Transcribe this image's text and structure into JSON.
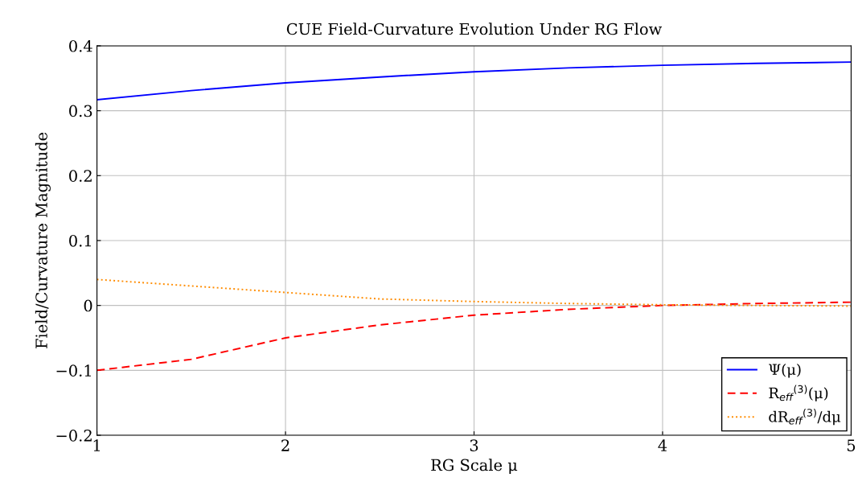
{
  "chart_data": {
    "type": "line",
    "title": "CUE Field-Curvature Evolution Under RG Flow",
    "xlabel": "RG Scale μ",
    "ylabel": "Field/Curvature Magnitude",
    "x": [
      1,
      1.5,
      2,
      2.5,
      3,
      3.5,
      4,
      4.5,
      5
    ],
    "series": [
      {
        "name": "Ψ(μ)",
        "color": "#0000ff",
        "line_style": "solid",
        "values": [
          0.317,
          0.331,
          0.343,
          0.352,
          0.36,
          0.366,
          0.37,
          0.373,
          0.375
        ]
      },
      {
        "name": "R$_{eff}$$^{(3)}$(μ)",
        "color": "#ff0000",
        "line_style": "dashed",
        "values": [
          -0.1,
          -0.083,
          -0.05,
          -0.03,
          -0.015,
          -0.006,
          0.0,
          0.003,
          0.005
        ]
      },
      {
        "name": "dR$_{eff}$$^{(3)}$/dμ",
        "color": "#ff8c00",
        "line_style": "dotted",
        "values": [
          0.04,
          0.03,
          0.02,
          0.01,
          0.006,
          0.003,
          0.001,
          0.0,
          -0.001
        ]
      }
    ],
    "xlim": [
      1,
      5
    ],
    "xticks": [
      1,
      2,
      3,
      4,
      5
    ],
    "ylim": [
      -0.2,
      0.4
    ],
    "yticks": [
      {
        "value": -0.2,
        "label": "−0.2"
      },
      {
        "value": -0.1,
        "label": "−0.1"
      },
      0,
      0.1,
      0.2,
      0.3,
      0.4
    ],
    "grid": true,
    "legend": "bottom right",
    "marker": "none"
  }
}
